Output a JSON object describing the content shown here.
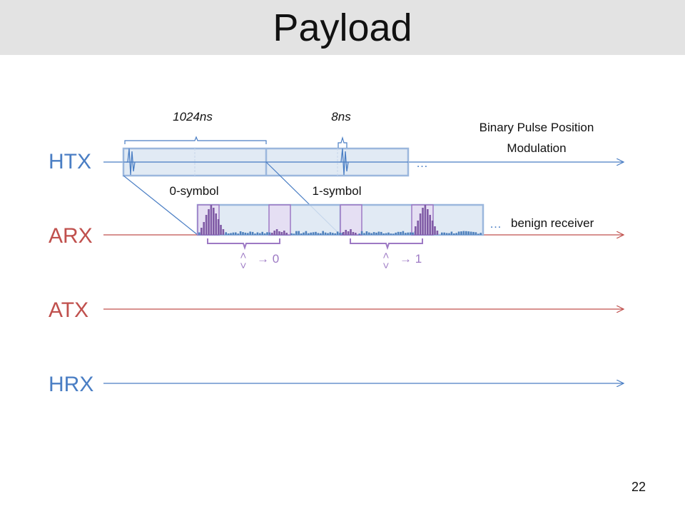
{
  "slide": {
    "title": "Payload",
    "page_number": "22"
  },
  "rows": {
    "htx": "HTX",
    "arx": "ARX",
    "atx": "ATX",
    "hrx": "HRX"
  },
  "annotations": {
    "period": "1024ns",
    "pulse_width": "8ns",
    "modulation_line1": "Binary Pulse Position",
    "modulation_line2": "Modulation",
    "zero_symbol": "0-symbol",
    "one_symbol": "1-symbol",
    "ellipsis_htx": "…",
    "ellipsis_arx": "…",
    "benign_receiver": "benign receiver",
    "compare_0": "→ 0",
    "compare_1": "→ 1",
    "lt_0": "<",
    "gt_0": ">",
    "lt_1": "<",
    "gt_1": ">"
  },
  "colors": {
    "htx_line": "#4a7ec4",
    "arx_line": "#c0504d",
    "box_fill": "#dce6f2",
    "box_stroke": "#9bb7dd",
    "highlight": "#9d79c4",
    "bars": "#4f81bd",
    "peak_bars": "#7f5aa5"
  }
}
